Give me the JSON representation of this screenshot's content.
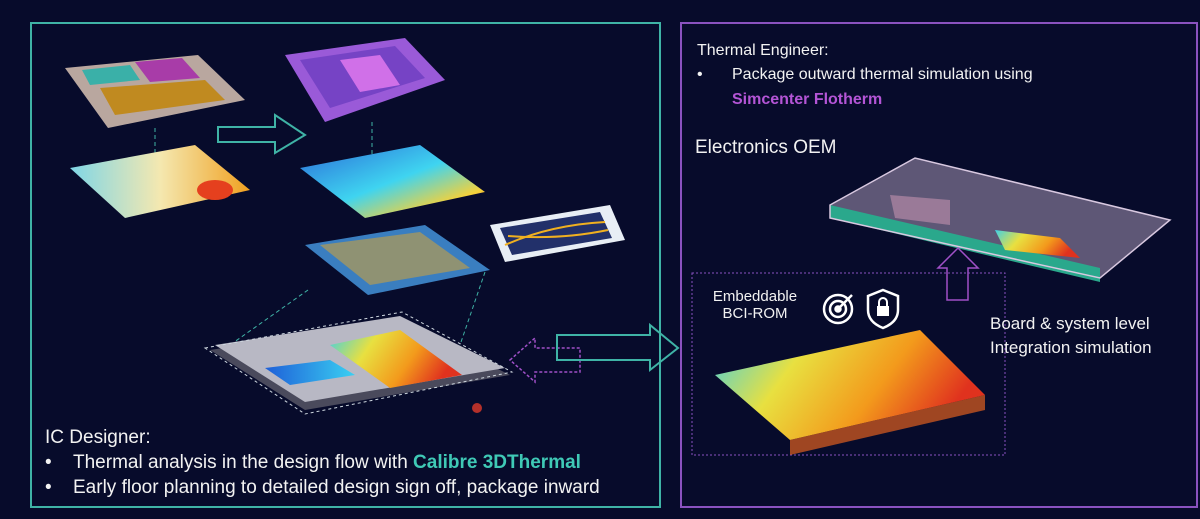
{
  "ic_designer": {
    "heading": "IC Designer:",
    "bullets": [
      {
        "text": "Thermal analysis in the design flow with ",
        "highlight": "Calibre 3DThermal"
      },
      {
        "text": "Early floor planning to detailed design sign off, package inward"
      }
    ]
  },
  "thermal_engineer": {
    "heading": "Thermal Engineer:",
    "bullet_text": "Package outward thermal simulation using",
    "highlight": "Simcenter Flotherm"
  },
  "electronics_oem": {
    "label": "Electronics OEM"
  },
  "bci_rom": {
    "line1": "Embeddable",
    "line2": "BCI-ROM",
    "icons": [
      "target-icon",
      "shield-lock-icon"
    ]
  },
  "board_system": {
    "line1": "Board & system level",
    "line2": "Integration simulation"
  },
  "colors": {
    "background": "#070b2b",
    "teal": "#3fb3a6",
    "purple": "#8a52c0",
    "highlight_teal": "#3fc9b6",
    "highlight_purple": "#b455d6"
  }
}
